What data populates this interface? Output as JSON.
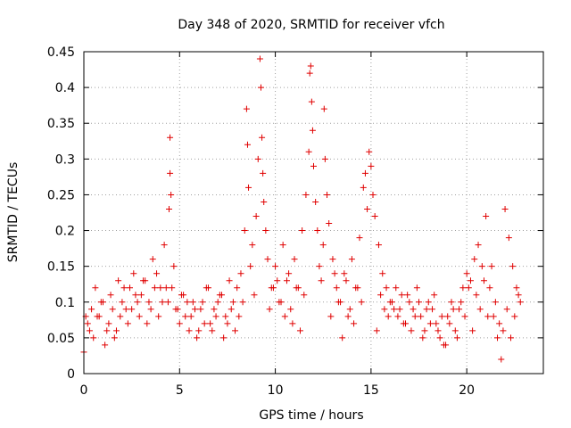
{
  "chart_data": {
    "type": "scatter",
    "title": "Day 348 of 2020, SRMTID for receiver vfch",
    "xlabel": "GPS time / hours",
    "ylabel": "SRMTID / TECUs",
    "xlim": [
      0,
      24
    ],
    "ylim": [
      0,
      0.45
    ],
    "xticks": [
      0,
      5,
      10,
      15,
      20
    ],
    "xtick_labels": [
      "0",
      "5",
      "10",
      "15",
      "20"
    ],
    "yticks": [
      0,
      0.05,
      0.1,
      0.15,
      0.2,
      0.25,
      0.3,
      0.35,
      0.4,
      0.45
    ],
    "ytick_labels": [
      "0",
      "0.05",
      "0.1",
      "0.15",
      "0.2",
      "0.25",
      "0.3",
      "0.35",
      "0.4",
      "0.45"
    ],
    "grid": true,
    "marker": "plus",
    "marker_color": "#e00000",
    "series": [
      {
        "name": "SRMTID",
        "x": [
          0.0,
          0.2,
          0.4,
          0.6,
          0.8,
          1.0,
          1.2,
          1.4,
          1.6,
          1.8,
          2.0,
          2.2,
          2.4,
          2.6,
          2.8,
          3.0,
          3.2,
          3.4,
          3.6,
          3.8,
          4.0,
          4.2,
          4.4,
          4.45,
          4.5,
          4.5,
          4.55,
          4.6,
          4.8,
          5.0,
          5.2,
          5.4,
          5.6,
          5.8,
          6.0,
          6.2,
          6.4,
          6.6,
          6.8,
          7.0,
          7.2,
          7.4,
          7.6,
          7.8,
          8.0,
          8.2,
          8.4,
          8.5,
          8.55,
          8.6,
          8.7,
          8.8,
          9.0,
          9.1,
          9.2,
          9.25,
          9.3,
          9.35,
          9.4,
          9.5,
          9.6,
          9.8,
          10.0,
          10.2,
          10.4,
          10.6,
          10.8,
          11.0,
          11.2,
          11.4,
          11.6,
          11.75,
          11.8,
          11.85,
          11.9,
          11.95,
          12.0,
          12.1,
          12.2,
          12.4,
          12.5,
          12.55,
          12.6,
          12.7,
          12.8,
          13.0,
          13.2,
          13.4,
          13.6,
          13.8,
          14.0,
          14.2,
          14.4,
          14.6,
          14.7,
          14.8,
          14.9,
          15.0,
          15.1,
          15.2,
          15.4,
          15.6,
          15.8,
          16.0,
          16.2,
          16.4,
          16.6,
          16.8,
          17.0,
          17.2,
          17.4,
          17.6,
          17.8,
          18.0,
          18.2,
          18.4,
          18.6,
          18.8,
          19.0,
          19.2,
          19.4,
          19.6,
          19.8,
          20.0,
          20.2,
          20.4,
          20.6,
          20.8,
          21.0,
          21.2,
          21.4,
          21.6,
          21.8,
          22.0,
          22.2,
          22.4,
          22.6,
          22.8,
          0.1,
          0.3,
          0.5,
          0.7,
          0.9,
          1.1,
          1.3,
          1.5,
          1.7,
          1.9,
          2.1,
          2.3,
          2.5,
          2.7,
          2.9,
          3.1,
          3.3,
          3.5,
          3.7,
          3.9,
          4.1,
          4.3,
          4.7,
          4.9,
          5.1,
          5.3,
          5.5,
          5.7,
          5.9,
          6.1,
          6.3,
          6.5,
          6.7,
          6.9,
          7.1,
          7.3,
          7.5,
          7.7,
          7.9,
          8.1,
          8.3,
          8.9,
          9.7,
          9.9,
          10.1,
          10.3,
          10.5,
          10.7,
          10.9,
          11.1,
          11.3,
          11.5,
          12.3,
          12.9,
          13.1,
          13.3,
          13.5,
          13.7,
          13.9,
          14.1,
          14.3,
          14.5,
          15.3,
          15.5,
          15.7,
          15.9,
          16.1,
          16.3,
          16.5,
          16.7,
          16.9,
          17.1,
          17.3,
          17.5,
          17.7,
          17.9,
          18.1,
          18.3,
          18.5,
          18.7,
          18.9,
          19.1,
          19.3,
          19.5,
          19.7,
          19.9,
          20.1,
          20.3,
          20.5,
          20.7,
          20.9,
          21.1,
          21.3,
          21.5,
          21.7,
          21.9,
          22.1,
          22.3,
          22.5,
          22.7
        ],
        "y": [
          0.03,
          0.07,
          0.09,
          0.12,
          0.08,
          0.1,
          0.06,
          0.11,
          0.05,
          0.13,
          0.1,
          0.09,
          0.12,
          0.14,
          0.1,
          0.11,
          0.13,
          0.1,
          0.16,
          0.14,
          0.12,
          0.18,
          0.1,
          0.23,
          0.28,
          0.33,
          0.25,
          0.12,
          0.09,
          0.07,
          0.11,
          0.1,
          0.08,
          0.09,
          0.06,
          0.1,
          0.12,
          0.07,
          0.09,
          0.1,
          0.11,
          0.08,
          0.13,
          0.1,
          0.12,
          0.14,
          0.2,
          0.37,
          0.32,
          0.26,
          0.15,
          0.18,
          0.22,
          0.3,
          0.44,
          0.4,
          0.33,
          0.28,
          0.24,
          0.2,
          0.16,
          0.12,
          0.15,
          0.1,
          0.18,
          0.13,
          0.09,
          0.16,
          0.12,
          0.2,
          0.25,
          0.31,
          0.42,
          0.43,
          0.38,
          0.34,
          0.29,
          0.24,
          0.2,
          0.13,
          0.18,
          0.37,
          0.3,
          0.25,
          0.21,
          0.16,
          0.12,
          0.1,
          0.14,
          0.08,
          0.16,
          0.12,
          0.19,
          0.26,
          0.28,
          0.23,
          0.31,
          0.29,
          0.25,
          0.22,
          0.18,
          0.14,
          0.12,
          0.1,
          0.09,
          0.08,
          0.11,
          0.07,
          0.1,
          0.09,
          0.12,
          0.08,
          0.06,
          0.1,
          0.09,
          0.07,
          0.05,
          0.04,
          0.08,
          0.1,
          0.06,
          0.09,
          0.12,
          0.14,
          0.13,
          0.16,
          0.18,
          0.15,
          0.22,
          0.12,
          0.08,
          0.05,
          0.02,
          0.23,
          0.19,
          0.15,
          0.12,
          0.1,
          0.08,
          0.06,
          0.05,
          0.08,
          0.1,
          0.04,
          0.07,
          0.09,
          0.06,
          0.08,
          0.12,
          0.07,
          0.09,
          0.11,
          0.08,
          0.13,
          0.07,
          0.09,
          0.12,
          0.08,
          0.1,
          0.12,
          0.15,
          0.09,
          0.11,
          0.08,
          0.06,
          0.1,
          0.05,
          0.09,
          0.07,
          0.12,
          0.06,
          0.08,
          0.11,
          0.05,
          0.07,
          0.09,
          0.06,
          0.08,
          0.1,
          0.11,
          0.09,
          0.12,
          0.13,
          0.1,
          0.08,
          0.14,
          0.07,
          0.12,
          0.06,
          0.11,
          0.15,
          0.08,
          0.14,
          0.1,
          0.05,
          0.13,
          0.09,
          0.07,
          0.12,
          0.1,
          0.06,
          0.11,
          0.09,
          0.08,
          0.1,
          0.12,
          0.09,
          0.07,
          0.11,
          0.06,
          0.08,
          0.1,
          0.05,
          0.09,
          0.07,
          0.11,
          0.06,
          0.08,
          0.04,
          0.07,
          0.09,
          0.05,
          0.1,
          0.08,
          0.12,
          0.06,
          0.11,
          0.09,
          0.13,
          0.08,
          0.15,
          0.1,
          0.07,
          0.06,
          0.09,
          0.05,
          0.08,
          0.11
        ]
      }
    ]
  }
}
